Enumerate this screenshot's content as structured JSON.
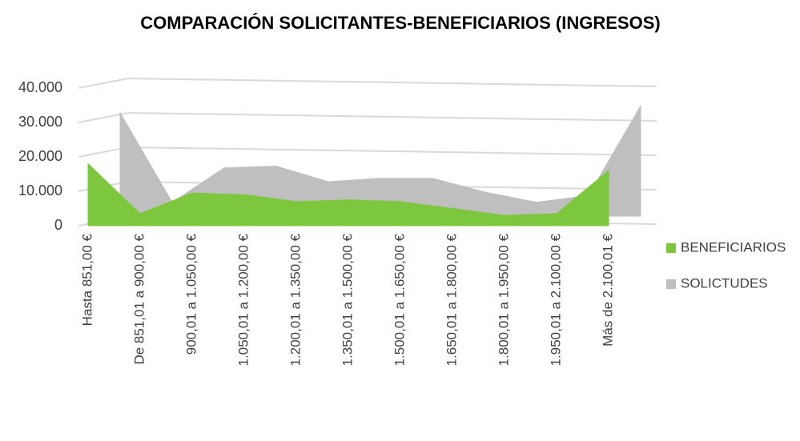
{
  "chart_data": {
    "type": "area3d",
    "title": "COMPARACIÓN SOLICITANTES-BENEFICIARIOS (INGRESOS)",
    "categories": [
      "Hasta 851,00 €",
      "De 851,01 a 900,00 €",
      "900,01 a 1.050,00 €",
      "1.050,01 a 1.200,00 €",
      "1.200,01 a 1.350,00 €",
      "1.350,01 a 1.500,00 €",
      "1.500,01 a 1.650,00 €",
      "1.650,01 a 1.800,00 €",
      "1.800,01 a 1.950,00 €",
      "1.950,01 a 2.100,00 €",
      "Más de 2.100,01 €"
    ],
    "series": [
      {
        "name": "BENEFICIARIOS",
        "color": "#7dc73f",
        "values": [
          18000,
          3500,
          9500,
          9000,
          7000,
          7500,
          7000,
          5000,
          3000,
          3500,
          16000
        ]
      },
      {
        "name": "SOLICTUDES",
        "color": "#bfbfbf",
        "values": [
          30000,
          4000,
          14000,
          14500,
          10000,
          11000,
          11000,
          7000,
          4000,
          6000,
          32000
        ]
      }
    ],
    "ylim": [
      0,
      40000
    ],
    "yticks": [
      0,
      {
        "value": 10000,
        "label": "10.000"
      },
      {
        "value": 20000,
        "label": "20.000"
      },
      {
        "value": 30000,
        "label": "30.000"
      },
      {
        "value": 40000,
        "label": "40.000"
      }
    ],
    "grid": true,
    "legend": "right"
  }
}
